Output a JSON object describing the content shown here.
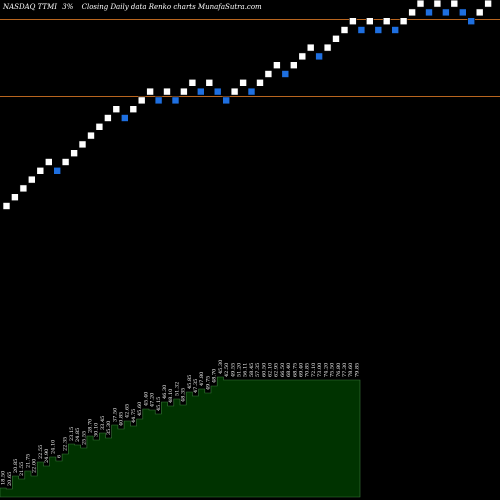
{
  "header": {
    "ticker": "NASDAQ TTMI",
    "change": "3%",
    "description": "Closing Daily data Renko charts MunafaSutra.com"
  },
  "colors": {
    "background": "#000000",
    "up_brick": "#ffffff",
    "down_brick": "#1e6fe0",
    "reference_line": "#b8651f",
    "volume_area": "#003300",
    "volume_outline": "#3a7a3a"
  },
  "chart_data": {
    "type": "renko",
    "reference_lines": [
      19.6,
      23.1
    ],
    "bricks": [
      {
        "value": 14.6,
        "dir": "up"
      },
      {
        "value": 15.0,
        "dir": "up"
      },
      {
        "value": 15.4,
        "dir": "up"
      },
      {
        "value": 15.8,
        "dir": "up"
      },
      {
        "value": 16.2,
        "dir": "up"
      },
      {
        "value": 16.6,
        "dir": "up"
      },
      {
        "value": 16.2,
        "dir": "down"
      },
      {
        "value": 16.6,
        "dir": "up"
      },
      {
        "value": 17.0,
        "dir": "up"
      },
      {
        "value": 17.4,
        "dir": "up"
      },
      {
        "value": 17.8,
        "dir": "up"
      },
      {
        "value": 18.2,
        "dir": "up"
      },
      {
        "value": 18.6,
        "dir": "up"
      },
      {
        "value": 19.0,
        "dir": "up"
      },
      {
        "value": 18.6,
        "dir": "down"
      },
      {
        "value": 19.0,
        "dir": "up"
      },
      {
        "value": 19.4,
        "dir": "up"
      },
      {
        "value": 19.8,
        "dir": "up"
      },
      {
        "value": 19.4,
        "dir": "down"
      },
      {
        "value": 19.8,
        "dir": "up"
      },
      {
        "value": 19.4,
        "dir": "down"
      },
      {
        "value": 19.8,
        "dir": "up"
      },
      {
        "value": 20.2,
        "dir": "up"
      },
      {
        "value": 19.8,
        "dir": "down"
      },
      {
        "value": 20.2,
        "dir": "up"
      },
      {
        "value": 19.8,
        "dir": "down"
      },
      {
        "value": 19.4,
        "dir": "down"
      },
      {
        "value": 19.8,
        "dir": "up"
      },
      {
        "value": 20.2,
        "dir": "up"
      },
      {
        "value": 19.8,
        "dir": "down"
      },
      {
        "value": 20.2,
        "dir": "up"
      },
      {
        "value": 20.6,
        "dir": "up"
      },
      {
        "value": 21.0,
        "dir": "up"
      },
      {
        "value": 20.6,
        "dir": "down"
      },
      {
        "value": 21.0,
        "dir": "up"
      },
      {
        "value": 21.4,
        "dir": "up"
      },
      {
        "value": 21.8,
        "dir": "up"
      },
      {
        "value": 21.4,
        "dir": "down"
      },
      {
        "value": 21.8,
        "dir": "up"
      },
      {
        "value": 22.2,
        "dir": "up"
      },
      {
        "value": 22.6,
        "dir": "up"
      },
      {
        "value": 23.0,
        "dir": "up"
      },
      {
        "value": 22.6,
        "dir": "down"
      },
      {
        "value": 23.0,
        "dir": "up"
      },
      {
        "value": 22.6,
        "dir": "down"
      },
      {
        "value": 23.0,
        "dir": "up"
      },
      {
        "value": 22.6,
        "dir": "down"
      },
      {
        "value": 23.0,
        "dir": "up"
      },
      {
        "value": 23.4,
        "dir": "up"
      },
      {
        "value": 23.8,
        "dir": "up"
      },
      {
        "value": 23.4,
        "dir": "down"
      },
      {
        "value": 23.8,
        "dir": "up"
      },
      {
        "value": 23.4,
        "dir": "down"
      },
      {
        "value": 23.8,
        "dir": "up"
      },
      {
        "value": 23.4,
        "dir": "down"
      },
      {
        "value": 23.0,
        "dir": "down"
      },
      {
        "value": 23.4,
        "dir": "up"
      },
      {
        "value": 23.8,
        "dir": "up"
      }
    ],
    "volume_labels": [
      "18.50",
      "20.65",
      "20.85",
      "21.55",
      "21.75",
      "22.00",
      "22.55",
      "24.90",
      "24.10",
      "6",
      "22.35",
      "23.15",
      "24.85",
      "25.55",
      "28.70",
      "30.10",
      "33.45",
      "35.30",
      "37.50",
      "40.85",
      "42.65",
      "44.75",
      "45.60",
      "45.40",
      "47.20",
      "45.15",
      "46.30",
      "48.10",
      "51.32",
      "48.35",
      "45.85",
      "47.35",
      "47.80",
      "49.75",
      "48.70",
      "45.30",
      "42.50",
      "49.55",
      "51.20",
      "56.11",
      "58.45",
      "57.35",
      "60.50",
      "62.10",
      "62.95",
      "66.50",
      "68.40",
      "68.75",
      "69.40",
      "70.85",
      "72.10",
      "73.00",
      "74.20",
      "75.50",
      "76.80",
      "77.30",
      "78.60",
      "79.85"
    ]
  }
}
